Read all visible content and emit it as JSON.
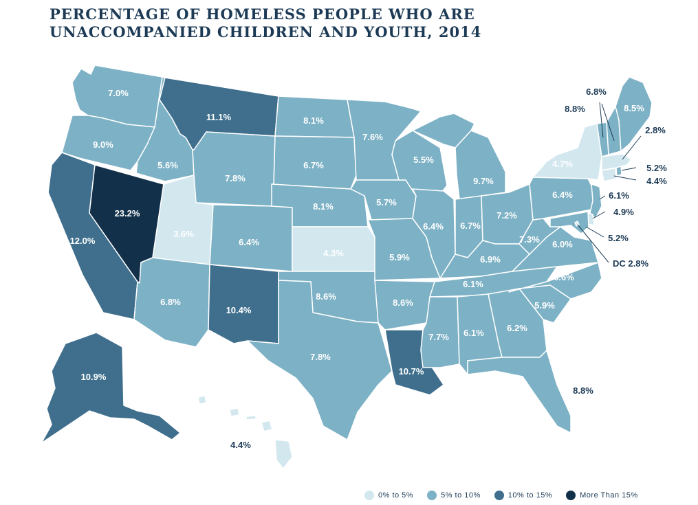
{
  "title_line1": "PERCENTAGE OF HOMELESS PEOPLE WHO ARE",
  "title_line2": "UNACCOMPANIED CHILDREN AND YOUTH, 2014",
  "colors": {
    "low": "#d3e7ef",
    "mid": "#7db1c5",
    "high": "#3f6f8d",
    "top": "#12304a",
    "text_dark": "#1c3a55",
    "border": "#ffffff"
  },
  "legend": [
    {
      "label": "0% to 5%",
      "color": "#d3e7ef"
    },
    {
      "label": "5% to 10%",
      "color": "#7db1c5"
    },
    {
      "label": "10% to 15%",
      "color": "#3f6f8d"
    },
    {
      "label": "More Than 15%",
      "color": "#12304a"
    }
  ],
  "states": {
    "WA": {
      "value": "7.0%",
      "bin": "mid"
    },
    "OR": {
      "value": "9.0%",
      "bin": "mid"
    },
    "CA": {
      "value": "12.0%",
      "bin": "high"
    },
    "NV": {
      "value": "23.2%",
      "bin": "top"
    },
    "ID": {
      "value": "5.6%",
      "bin": "mid"
    },
    "MT": {
      "value": "11.1%",
      "bin": "high"
    },
    "WY": {
      "value": "7.8%",
      "bin": "mid"
    },
    "UT": {
      "value": "3.6%",
      "bin": "low"
    },
    "AZ": {
      "value": "6.8%",
      "bin": "mid"
    },
    "CO": {
      "value": "6.4%",
      "bin": "mid"
    },
    "NM": {
      "value": "10.4%",
      "bin": "high"
    },
    "ND": {
      "value": "8.1%",
      "bin": "mid"
    },
    "SD": {
      "value": "6.7%",
      "bin": "mid"
    },
    "NE": {
      "value": "8.1%",
      "bin": "mid"
    },
    "KS": {
      "value": "4.3%",
      "bin": "low"
    },
    "OK": {
      "value": "8.6%",
      "bin": "mid"
    },
    "TX": {
      "value": "7.8%",
      "bin": "mid"
    },
    "MN": {
      "value": "7.6%",
      "bin": "mid"
    },
    "IA": {
      "value": "5.7%",
      "bin": "mid"
    },
    "MO": {
      "value": "5.9%",
      "bin": "mid"
    },
    "AR": {
      "value": "8.6%",
      "bin": "mid"
    },
    "LA": {
      "value": "10.7%",
      "bin": "high"
    },
    "WI": {
      "value": "5.5%",
      "bin": "mid"
    },
    "IL": {
      "value": "6.4%",
      "bin": "mid"
    },
    "MI": {
      "value": "9.7%",
      "bin": "mid"
    },
    "IN": {
      "value": "6.7%",
      "bin": "mid"
    },
    "OH": {
      "value": "7.2%",
      "bin": "mid"
    },
    "KY": {
      "value": "6.9%",
      "bin": "mid"
    },
    "TN": {
      "value": "6.1%",
      "bin": "mid"
    },
    "MS": {
      "value": "7.7%",
      "bin": "mid"
    },
    "AL": {
      "value": "6.1%",
      "bin": "mid"
    },
    "GA": {
      "value": "6.2%",
      "bin": "mid"
    },
    "FL": {
      "value": "8.8%",
      "bin": "mid"
    },
    "SC": {
      "value": "5.9%",
      "bin": "mid"
    },
    "NC": {
      "value": "6.6%",
      "bin": "mid"
    },
    "VA": {
      "value": "6.0%",
      "bin": "mid"
    },
    "WV": {
      "value": "7.3%",
      "bin": "mid"
    },
    "PA": {
      "value": "6.4%",
      "bin": "mid"
    },
    "NY": {
      "value": "4.7%",
      "bin": "low"
    },
    "NJ": {
      "value": "6.1%",
      "bin": "mid"
    },
    "DE": {
      "value": "4.9%",
      "bin": "low"
    },
    "MD": {
      "value": "5.2%",
      "bin": "mid"
    },
    "DC": {
      "value": "DC 2.8%",
      "bin": "low"
    },
    "CT": {
      "value": "4.4%",
      "bin": "low"
    },
    "RI": {
      "value": "5.2%",
      "bin": "mid"
    },
    "MA": {
      "value": "2.8%",
      "bin": "low"
    },
    "VT": {
      "value": "6.8%",
      "bin": "mid"
    },
    "NH": {
      "value": "8.8%",
      "bin": "mid"
    },
    "ME": {
      "value": "8.5%",
      "bin": "mid"
    },
    "AK": {
      "value": "10.9%",
      "bin": "high"
    },
    "HI": {
      "value": "4.4%",
      "bin": "low"
    }
  }
}
